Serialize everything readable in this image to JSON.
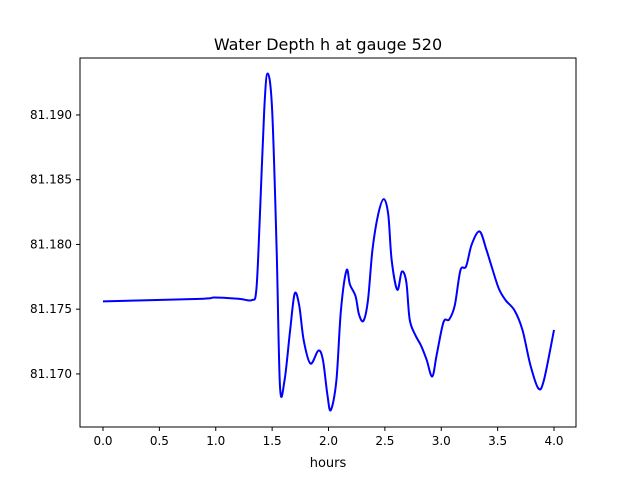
{
  "chart_data": {
    "type": "line",
    "title": "Water Depth h at gauge 520",
    "xlabel": "hours",
    "ylabel": "",
    "xlim": [
      -0.204,
      4.195
    ],
    "ylim": [
      81.1659,
      81.1944
    ],
    "grid": false,
    "xticks": [
      0.0,
      0.5,
      1.0,
      1.5,
      2.0,
      2.5,
      3.0,
      3.5,
      4.0
    ],
    "xtick_labels": [
      "0.0",
      "0.5",
      "1.0",
      "1.5",
      "2.0",
      "2.5",
      "3.0",
      "3.5",
      "4.0"
    ],
    "yticks": [
      81.17,
      81.175,
      81.18,
      81.185,
      81.19
    ],
    "ytick_labels": [
      "81.170",
      "81.175",
      "81.180",
      "81.185",
      "81.190"
    ],
    "series": [
      {
        "name": "h",
        "color": "#0000ff",
        "x": [
          0.0,
          0.86,
          0.99,
          1.21,
          1.32,
          1.36,
          1.39,
          1.43,
          1.46,
          1.5,
          1.54,
          1.57,
          1.61,
          1.66,
          1.7,
          1.74,
          1.78,
          1.84,
          1.91,
          1.95,
          1.99,
          2.02,
          2.07,
          2.11,
          2.16,
          2.19,
          2.24,
          2.27,
          2.31,
          2.35,
          2.39,
          2.44,
          2.49,
          2.53,
          2.56,
          2.61,
          2.65,
          2.69,
          2.72,
          2.77,
          2.82,
          2.87,
          2.92,
          2.96,
          3.02,
          3.07,
          3.12,
          3.17,
          3.22,
          3.27,
          3.34,
          3.4,
          3.45,
          3.51,
          3.57,
          3.65,
          3.72,
          3.79,
          3.86,
          3.91,
          4.0
        ],
        "y": [
          81.1756,
          81.1758,
          81.1759,
          81.1758,
          81.1757,
          81.1765,
          81.1819,
          81.1904,
          81.1932,
          81.1904,
          81.1796,
          81.169,
          81.1695,
          81.1734,
          81.1762,
          81.1753,
          81.1726,
          81.1708,
          81.1718,
          81.1711,
          81.1684,
          81.1672,
          81.1695,
          81.1749,
          81.178,
          81.1769,
          81.176,
          81.1746,
          81.1741,
          81.1757,
          81.1796,
          81.1823,
          81.1835,
          81.1823,
          81.1788,
          81.1765,
          81.1779,
          81.1771,
          81.1742,
          81.173,
          81.1722,
          81.1711,
          81.1698,
          81.1715,
          81.174,
          81.1742,
          81.1753,
          81.178,
          81.1783,
          81.18,
          81.181,
          81.1796,
          81.1782,
          81.1766,
          81.1757,
          81.1749,
          81.1734,
          81.1707,
          81.1689,
          81.1695,
          81.1734
        ]
      }
    ]
  }
}
